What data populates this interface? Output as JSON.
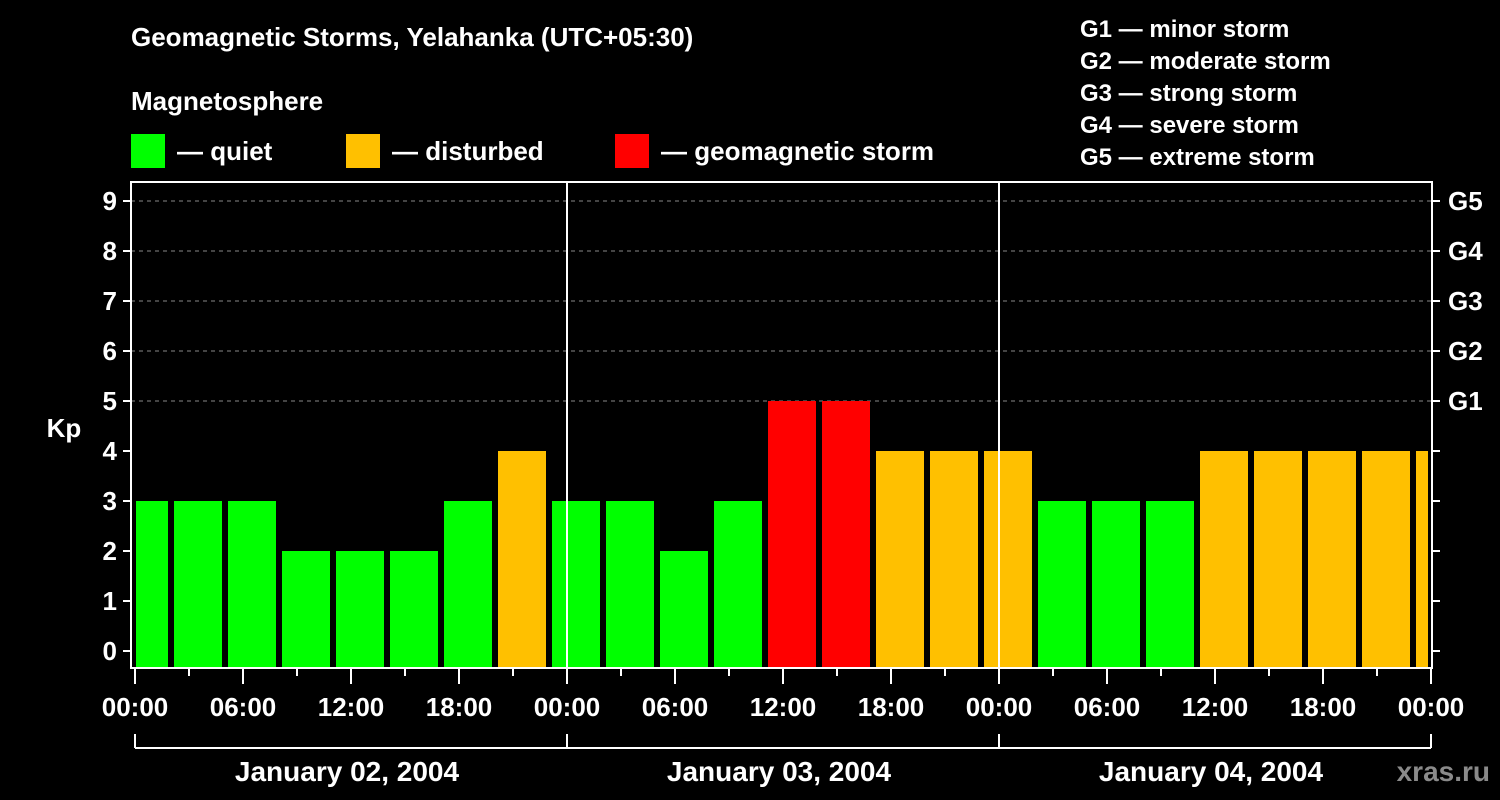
{
  "title": "Geomagnetic Storms, Yelahanka (UTC+05:30)",
  "magnetosphere": {
    "label": "Magnetosphere",
    "legend": [
      {
        "label": "— quiet",
        "color": "#00ff00"
      },
      {
        "label": "— disturbed",
        "color": "#ffc000"
      },
      {
        "label": "— geomagnetic storm",
        "color": "#ff0000"
      }
    ]
  },
  "storm_levels": [
    "G1 — minor storm",
    "G2 — moderate storm",
    "G3 — strong storm",
    "G4 — severe storm",
    "G5 — extreme storm"
  ],
  "watermark": "xras.ru",
  "chart_data": {
    "type": "bar",
    "title": "Geomagnetic Storms, Yelahanka (UTC+05:30)",
    "ylabel": "Kp",
    "ylim": [
      0,
      9
    ],
    "yticks": [
      0,
      1,
      2,
      3,
      4,
      5,
      6,
      7,
      8,
      9
    ],
    "right_axis_labels": [
      {
        "kp": 5,
        "label": "G1"
      },
      {
        "kp": 6,
        "label": "G2"
      },
      {
        "kp": 7,
        "label": "G3"
      },
      {
        "kp": 8,
        "label": "G4"
      },
      {
        "kp": 9,
        "label": "G5"
      }
    ],
    "xtick_labels": [
      "00:00",
      "06:00",
      "12:00",
      "18:00",
      "00:00",
      "06:00",
      "12:00",
      "18:00",
      "00:00",
      "06:00",
      "12:00",
      "18:00",
      "00:00"
    ],
    "days": [
      "January 02, 2004",
      "January 03, 2004",
      "January 04, 2004"
    ],
    "interval_hours": 3,
    "grid": true,
    "values": [
      3,
      3,
      3,
      2,
      2,
      2,
      3,
      4,
      3,
      3,
      2,
      3,
      5,
      5,
      4,
      4,
      4,
      3,
      3,
      3,
      4,
      4,
      4,
      4,
      4
    ],
    "colors": {
      "quiet": "#00ff00",
      "disturbed": "#ffc000",
      "storm": "#ff0000"
    },
    "thresholds": {
      "disturbed": 4,
      "storm": 5
    }
  }
}
